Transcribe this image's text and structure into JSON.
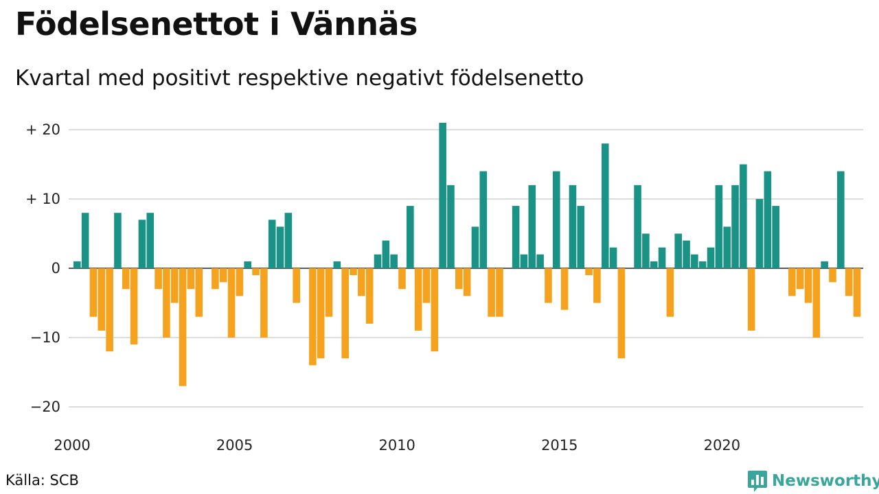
{
  "title": "Födelsenettot i Vännäs",
  "subtitle": "Kvartal med positivt respektive negativt födelsenetto",
  "source": "Källa: SCB",
  "brand": {
    "name": "Newsworthy",
    "icon": "bar-chart-speech-bubble-icon",
    "color": "#3aa59a"
  },
  "colors": {
    "positive": "#1a9386",
    "negative": "#f5a21f",
    "grid": "#dddddd"
  },
  "chart_data": {
    "type": "bar",
    "title": "Födelsenettot i Vännäs",
    "subtitle": "Kvartal med positivt respektive negativt födelsenetto",
    "xlabel": "",
    "ylabel": "",
    "ylim": [
      -22,
      22
    ],
    "yticks": [
      {
        "value": 20,
        "label": "+ 20"
      },
      {
        "value": 10,
        "label": "+ 10"
      },
      {
        "value": 0,
        "label": "0"
      },
      {
        "value": -10,
        "label": "−10"
      },
      {
        "value": -20,
        "label": "−20"
      }
    ],
    "xticks": [
      {
        "year": 2000,
        "label": "2000"
      },
      {
        "year": 2005,
        "label": "2005"
      },
      {
        "year": 2010,
        "label": "2010"
      },
      {
        "year": 2015,
        "label": "2015"
      },
      {
        "year": 2020,
        "label": "2020"
      }
    ],
    "grid": true,
    "legend": "none",
    "start_year": 2000,
    "start_quarter": 1,
    "values": [
      1,
      8,
      -7,
      -9,
      -12,
      8,
      -3,
      -11,
      7,
      8,
      -3,
      -10,
      -5,
      -17,
      -3,
      -7,
      0,
      -3,
      -2,
      -10,
      -4,
      1,
      -1,
      -10,
      7,
      6,
      8,
      -5,
      0,
      -14,
      -13,
      -7,
      1,
      -13,
      -1,
      -4,
      -8,
      2,
      4,
      2,
      -3,
      9,
      -9,
      -5,
      -12,
      21,
      12,
      -3,
      -4,
      6,
      14,
      -7,
      -7,
      0,
      9,
      2,
      12,
      2,
      -5,
      14,
      -6,
      12,
      9,
      -1,
      -5,
      18,
      3,
      -13,
      0,
      12,
      5,
      1,
      3,
      -7,
      5,
      4,
      2,
      1,
      3,
      12,
      6,
      12,
      15,
      -9,
      10,
      14,
      9,
      0,
      -4,
      -3,
      -5,
      -10,
      1,
      -2,
      14,
      -4,
      -7
    ]
  }
}
